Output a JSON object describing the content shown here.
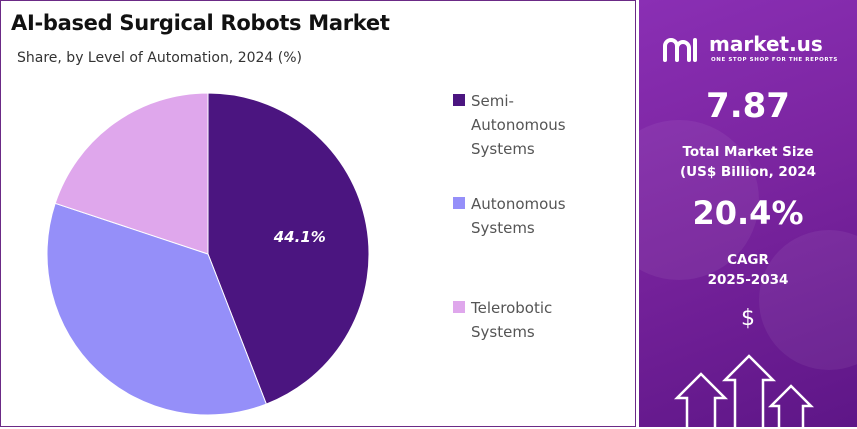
{
  "title": "AI-based Surgical Robots Market",
  "subtitle": "Share, by Level of Automation, 2024 (%)",
  "chart_data": {
    "type": "pie",
    "title": "AI-based Surgical Robots Market",
    "subtitle": "Share, by Level of Automation, 2024 (%)",
    "start_angle_deg": 0,
    "direction": "clockwise",
    "legend_position": "right",
    "slices": [
      {
        "name": "Semi-Autonomous Systems",
        "value": 44.1,
        "color": "#4b1580",
        "label": "44.1%"
      },
      {
        "name": "Autonomous Systems",
        "value": 36.0,
        "color": "#958ff9",
        "label": ""
      },
      {
        "name": "Telerobotic Systems",
        "value": 19.9,
        "color": "#dfa7ec",
        "label": ""
      }
    ]
  },
  "legend": [
    {
      "lines": [
        "Semi-",
        "Autonomous",
        "Systems"
      ],
      "color": "#4b1580"
    },
    {
      "lines": [
        "Autonomous",
        "Systems"
      ],
      "color": "#958ff9"
    },
    {
      "lines": [
        "Telerobotic",
        "Systems"
      ],
      "color": "#dfa7ec"
    }
  ],
  "sidebar": {
    "brand": "market.us",
    "tagline": "ONE STOP SHOP FOR THE REPORTS",
    "market_size_value": "7.87",
    "market_size_label_line1": "Total Market Size",
    "market_size_label_line2": "(US$ Billion, 2024",
    "cagr_value": "20.4%",
    "cagr_label_line1": "CAGR",
    "cagr_label_line2": "2025-2034",
    "currency_symbol": "$",
    "logo_icon": "market-us-logo-icon",
    "arrow_icon": "up-arrow-icon"
  }
}
